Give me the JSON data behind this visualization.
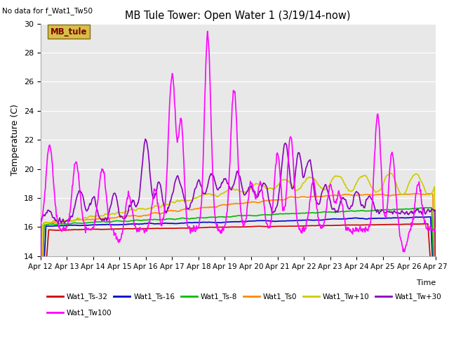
{
  "title": "MB Tule Tower: Open Water 1 (3/19/14-now)",
  "note": "No data for f_Wat1_Tw50",
  "xlabel": "Time",
  "ylabel": "Temperature (C)",
  "ylim": [
    14,
    30
  ],
  "yticks": [
    14,
    16,
    18,
    20,
    22,
    24,
    26,
    28,
    30
  ],
  "x_tick_labels": [
    "Apr 12",
    "Apr 13",
    "Apr 14",
    "Apr 15",
    "Apr 16",
    "Apr 17",
    "Apr 18",
    "Apr 19",
    "Apr 20",
    "Apr 21",
    "Apr 22",
    "Apr 23",
    "Apr 24",
    "Apr 25",
    "Apr 26",
    "Apr 27"
  ],
  "bg_color": "#e8e8e8",
  "fig_color": "#ffffff",
  "series": {
    "Wat1_Ts-32": {
      "color": "#cc0000",
      "lw": 1.2
    },
    "Wat1_Ts-16": {
      "color": "#0000cc",
      "lw": 1.2
    },
    "Wat1_Ts-8": {
      "color": "#00bb00",
      "lw": 1.2
    },
    "Wat1_Ts0": {
      "color": "#ff8800",
      "lw": 1.2
    },
    "Wat1_Tw+10": {
      "color": "#cccc00",
      "lw": 1.2
    },
    "Wat1_Tw+30": {
      "color": "#8800bb",
      "lw": 1.2
    },
    "Wat1_Tw100": {
      "color": "#ff00ff",
      "lw": 1.2
    }
  },
  "mb_tule_facecolor": "#d4c04a",
  "mb_tule_edgecolor": "#8b6914",
  "mb_tule_textcolor": "#800000"
}
